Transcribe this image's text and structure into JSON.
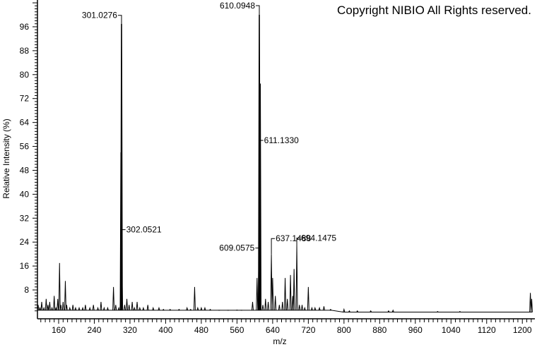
{
  "copyright": "Copyright NIBIO All Rights reserved.",
  "chart_data": {
    "type": "line",
    "subtype": "mass-spectrum",
    "xlabel": "m/z",
    "ylabel": "Relative Intensity (%)",
    "xlim": [
      109,
      1225
    ],
    "ylim": [
      0,
      100
    ],
    "x_ticks": [
      160,
      240,
      320,
      400,
      480,
      560,
      640,
      720,
      800,
      880,
      960,
      1040,
      1120,
      1200
    ],
    "y_ticks": [
      8,
      16,
      24,
      32,
      40,
      48,
      56,
      64,
      72,
      80,
      88,
      96
    ],
    "grid": false,
    "line_color": "#000000",
    "annotated_peaks": [
      {
        "label": "301.0276",
        "mz": 301.03,
        "intensity": 97
      },
      {
        "label": "302.0521",
        "mz": 302.05,
        "intensity": 14
      },
      {
        "label": "610.0948",
        "mz": 610.09,
        "intensity": 100
      },
      {
        "label": "611.1330",
        "mz": 611.13,
        "intensity": 58
      },
      {
        "label": "609.0575",
        "mz": 609.06,
        "intensity": 22
      },
      {
        "label": "637.1488",
        "mz": 637.15,
        "intensity": 20
      },
      {
        "label": "694.1475",
        "mz": 694.15,
        "intensity": 23
      }
    ],
    "peaks": [
      [
        114,
        3
      ],
      [
        118,
        2
      ],
      [
        122,
        4
      ],
      [
        127,
        2
      ],
      [
        132,
        5
      ],
      [
        136,
        3
      ],
      [
        140,
        4
      ],
      [
        145,
        2
      ],
      [
        150,
        6
      ],
      [
        154,
        2
      ],
      [
        158,
        5
      ],
      [
        162,
        17
      ],
      [
        165,
        3
      ],
      [
        170,
        4
      ],
      [
        175,
        11
      ],
      [
        178,
        3
      ],
      [
        185,
        2
      ],
      [
        192,
        3
      ],
      [
        198,
        2
      ],
      [
        206,
        2
      ],
      [
        214,
        2
      ],
      [
        220,
        3
      ],
      [
        230,
        2
      ],
      [
        238,
        3
      ],
      [
        248,
        2
      ],
      [
        255,
        4
      ],
      [
        262,
        2
      ],
      [
        270,
        2
      ],
      [
        283,
        9
      ],
      [
        288,
        3
      ],
      [
        295,
        2
      ],
      [
        300,
        54
      ],
      [
        301.03,
        97
      ],
      [
        302.05,
        14
      ],
      [
        308,
        3
      ],
      [
        313,
        5
      ],
      [
        318,
        3
      ],
      [
        325,
        4
      ],
      [
        330,
        2
      ],
      [
        336,
        4
      ],
      [
        342,
        2
      ],
      [
        350,
        2
      ],
      [
        360,
        3
      ],
      [
        372,
        2
      ],
      [
        385,
        2
      ],
      [
        395,
        1.5
      ],
      [
        410,
        1.5
      ],
      [
        430,
        1.5
      ],
      [
        448,
        2
      ],
      [
        456,
        1.5
      ],
      [
        465,
        9
      ],
      [
        472,
        2
      ],
      [
        480,
        2
      ],
      [
        488,
        2
      ],
      [
        500,
        1.5
      ],
      [
        520,
        1.2
      ],
      [
        540,
        1.2
      ],
      [
        560,
        1.3
      ],
      [
        570,
        1.2
      ],
      [
        595,
        4
      ],
      [
        605,
        12
      ],
      [
        609.06,
        22
      ],
      [
        610.09,
        100
      ],
      [
        611.13,
        58
      ],
      [
        612,
        77
      ],
      [
        618,
        3
      ],
      [
        624,
        5
      ],
      [
        630,
        4
      ],
      [
        637.15,
        20
      ],
      [
        640,
        12
      ],
      [
        646,
        6
      ],
      [
        655,
        3
      ],
      [
        662,
        4
      ],
      [
        668,
        12
      ],
      [
        673,
        5
      ],
      [
        680,
        13
      ],
      [
        685,
        6
      ],
      [
        688,
        15
      ],
      [
        694.15,
        23
      ],
      [
        700,
        3
      ],
      [
        706,
        3
      ],
      [
        712,
        2
      ],
      [
        720,
        9
      ],
      [
        728,
        2
      ],
      [
        735,
        2
      ],
      [
        745,
        2
      ],
      [
        755,
        2.5
      ],
      [
        770,
        1.5
      ],
      [
        800,
        1.5
      ],
      [
        812,
        1
      ],
      [
        830,
        1
      ],
      [
        860,
        1
      ],
      [
        900,
        1
      ],
      [
        910,
        1.2
      ],
      [
        1010,
        0.8
      ],
      [
        1060,
        0.8
      ],
      [
        1218,
        7
      ],
      [
        1221,
        5
      ]
    ]
  }
}
